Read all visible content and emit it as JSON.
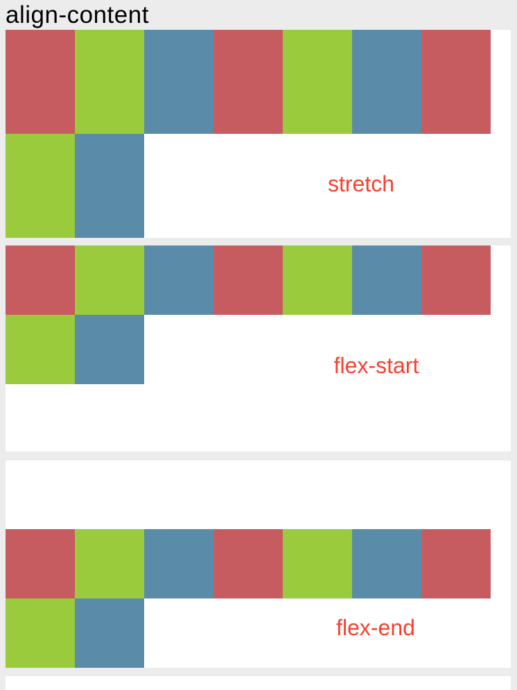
{
  "page": {
    "title": "align-content",
    "background_color": "#ececec",
    "panel_background": "#ffffff",
    "title_color": "#000000"
  },
  "colors": {
    "red": "#c75c60",
    "green": "#9acb3c",
    "blue": "#5a8ca9"
  },
  "label_color": "#fa3f2f",
  "panels": [
    {
      "label": "stretch",
      "align_content": "stretch",
      "boxes": [
        "red",
        "green",
        "blue",
        "red",
        "green",
        "blue",
        "red",
        "green",
        "blue"
      ]
    },
    {
      "label": "flex-start",
      "align_content": "flex-start",
      "boxes": [
        "red",
        "green",
        "blue",
        "red",
        "green",
        "blue",
        "red",
        "green",
        "blue"
      ]
    },
    {
      "label": "flex-end",
      "align_content": "flex-end",
      "boxes": [
        "red",
        "green",
        "blue",
        "red",
        "green",
        "blue",
        "red",
        "green",
        "blue"
      ]
    }
  ]
}
